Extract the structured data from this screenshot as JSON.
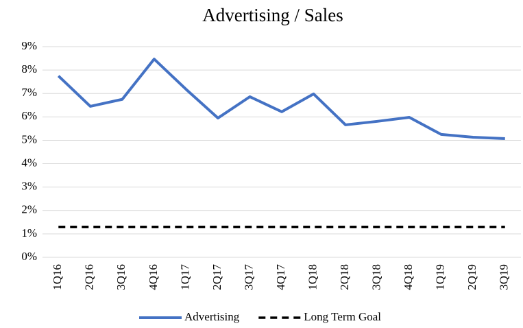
{
  "chart_data": {
    "type": "line",
    "title": "Advertising / Sales",
    "categories": [
      "1Q16",
      "2Q16",
      "3Q16",
      "4Q16",
      "1Q17",
      "2Q17",
      "3Q17",
      "4Q17",
      "1Q18",
      "2Q18",
      "3Q18",
      "4Q18",
      "1Q19",
      "2Q19",
      "3Q19"
    ],
    "series": [
      {
        "name": "Advertising",
        "color": "#4472c4",
        "dash": false,
        "values": [
          7.75,
          6.45,
          6.75,
          8.47,
          7.18,
          5.95,
          6.86,
          6.22,
          6.98,
          5.66,
          5.81,
          5.98,
          5.25,
          5.13,
          5.07
        ]
      },
      {
        "name": "Long Term Goal",
        "color": "#000000",
        "dash": true,
        "values": [
          1.3,
          1.3,
          1.3,
          1.3,
          1.3,
          1.3,
          1.3,
          1.3,
          1.3,
          1.3,
          1.3,
          1.3,
          1.3,
          1.3,
          1.3
        ]
      }
    ],
    "ylim": [
      0,
      9
    ],
    "yticks": [
      {
        "value": 0,
        "label": "0%"
      },
      {
        "value": 1,
        "label": "1%"
      },
      {
        "value": 2,
        "label": "2%"
      },
      {
        "value": 3,
        "label": "3%"
      },
      {
        "value": 4,
        "label": "4%"
      },
      {
        "value": 5,
        "label": "5%"
      },
      {
        "value": 6,
        "label": "6%"
      },
      {
        "value": 7,
        "label": "7%"
      },
      {
        "value": 8,
        "label": "8%"
      },
      {
        "value": 9,
        "label": "9%"
      }
    ],
    "grid": true,
    "legend": "bottom"
  }
}
